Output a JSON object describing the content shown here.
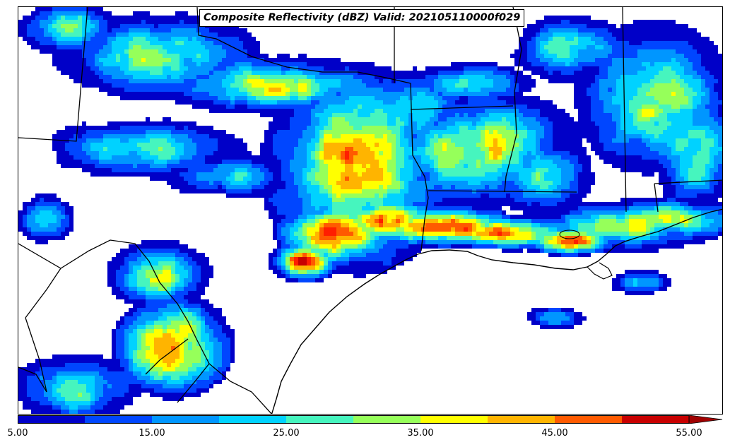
{
  "title": "Composite Reflectivity (dBZ) Valid: 202105110000f029",
  "colorbar": {
    "bounds": [
      5,
      10,
      15,
      20,
      25,
      30,
      35,
      40,
      45,
      50,
      55
    ],
    "colors": [
      "#0000c8",
      "#0046ff",
      "#0096ff",
      "#00d2ff",
      "#46f5be",
      "#96ff5a",
      "#ffff00",
      "#ffb400",
      "#ff5a00",
      "#ff1e00",
      "#c80000"
    ],
    "extend_color": "#a00000",
    "tick_labels": [
      "5.00",
      "15.00",
      "25.00",
      "35.00",
      "45.00",
      "55.00"
    ],
    "extend": "max"
  }
}
